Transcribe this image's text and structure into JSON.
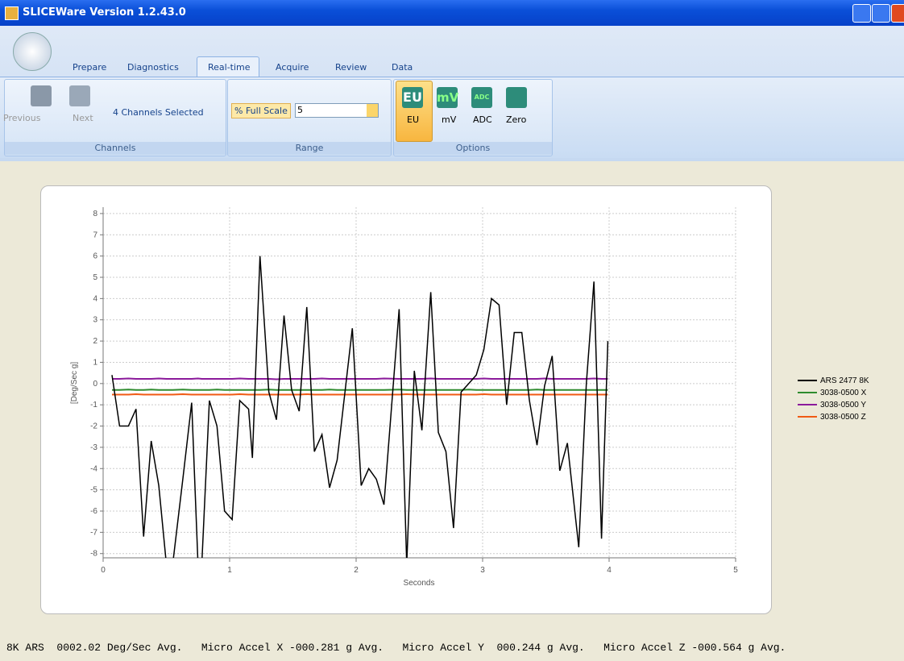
{
  "window": {
    "title": "SLICEWare Version 1.2.43.0"
  },
  "tabs": [
    "Prepare",
    "Diagnostics",
    "Real-time",
    "Acquire",
    "Review",
    "Data"
  ],
  "ribbon": {
    "channels": {
      "label": "Channels",
      "previous": "Previous",
      "next": "Next",
      "selector": "4 Channels Selected"
    },
    "range": {
      "label": "Range",
      "field": "% Full Scale",
      "value": "5"
    },
    "options": {
      "label": "Options",
      "buttons": [
        "EU",
        "mV",
        "ADC",
        "Zero"
      ]
    }
  },
  "chart_data": {
    "type": "line",
    "xlabel": "Seconds",
    "ylabel": "[Deg/Sec g]",
    "xlim": [
      0,
      5
    ],
    "xticks": [
      0,
      1,
      2,
      3,
      4,
      5
    ],
    "ylim": [
      -8.2,
      8.3
    ],
    "yticks": [
      -8,
      -7,
      -6,
      -5,
      -4,
      -3,
      -2,
      -1,
      0,
      1,
      2,
      3,
      4,
      5,
      6,
      7,
      8
    ],
    "grid": true,
    "legend": "right",
    "x": [
      0.07,
      0.13,
      0.2,
      0.26,
      0.32,
      0.38,
      0.44,
      0.5,
      0.55,
      0.63,
      0.7,
      0.75,
      0.78,
      0.84,
      0.9,
      0.96,
      1.02,
      1.08,
      1.15,
      1.18,
      1.24,
      1.31,
      1.37,
      1.43,
      1.49,
      1.55,
      1.61,
      1.67,
      1.73,
      1.79,
      1.85,
      1.97,
      2.04,
      2.1,
      2.16,
      2.22,
      2.34,
      2.4,
      2.46,
      2.52,
      2.59,
      2.65,
      2.71,
      2.77,
      2.83,
      2.89,
      2.95,
      3.01,
      3.07,
      3.13,
      3.19,
      3.25,
      3.31,
      3.37,
      3.43,
      3.49,
      3.55,
      3.61,
      3.67,
      3.76,
      3.82,
      3.88,
      3.94,
      3.99
    ],
    "series": [
      {
        "name": "ARS 2477 8K",
        "color": "#000000",
        "values": [
          0.4,
          -2.0,
          -2.0,
          -1.2,
          -7.2,
          -2.7,
          -4.8,
          -8.5,
          -8.5,
          -4.5,
          -0.9,
          -8.5,
          -8.5,
          -0.8,
          -2.0,
          -6.0,
          -6.4,
          -0.8,
          -1.2,
          -3.5,
          6.0,
          -0.4,
          -1.7,
          3.2,
          -0.3,
          -1.3,
          3.6,
          -3.2,
          -2.4,
          -4.9,
          -3.6,
          2.6,
          -4.8,
          -4.0,
          -4.5,
          -5.7,
          3.5,
          -8.5,
          0.6,
          -2.2,
          4.3,
          -2.3,
          -3.2,
          -6.8,
          -0.4,
          0.0,
          0.4,
          1.6,
          4.0,
          3.7,
          -1.0,
          2.4,
          2.4,
          -0.8,
          -2.9,
          -0.1,
          1.3,
          -4.1,
          -2.8,
          -7.7,
          0.0,
          4.8,
          -7.3,
          2.0
        ]
      },
      {
        "name": "3038-0500 X",
        "color": "#2e8b2e",
        "values": [
          -0.3,
          -0.3,
          -0.28,
          -0.3,
          -0.3,
          -0.28,
          -0.3,
          -0.3,
          -0.3,
          -0.28,
          -0.3,
          -0.3,
          -0.3,
          -0.3,
          -0.28,
          -0.3,
          -0.3,
          -0.3,
          -0.3,
          -0.3,
          -0.3,
          -0.28,
          -0.3,
          -0.3,
          -0.3,
          -0.3,
          -0.3,
          -0.3,
          -0.3,
          -0.28,
          -0.3,
          -0.3,
          -0.3,
          -0.3,
          -0.3,
          -0.3,
          -0.28,
          -0.3,
          -0.3,
          -0.3,
          -0.3,
          -0.3,
          -0.3,
          -0.3,
          -0.3,
          -0.28,
          -0.3,
          -0.3,
          -0.3,
          -0.3,
          -0.3,
          -0.3,
          -0.3,
          -0.3,
          -0.28,
          -0.3,
          -0.3,
          -0.3,
          -0.3,
          -0.3,
          -0.3,
          -0.3,
          -0.3,
          -0.3
        ]
      },
      {
        "name": "3038-0500 Y",
        "color": "#8b1a9b",
        "values": [
          0.22,
          0.22,
          0.24,
          0.22,
          0.22,
          0.22,
          0.24,
          0.22,
          0.22,
          0.22,
          0.22,
          0.24,
          0.22,
          0.22,
          0.22,
          0.22,
          0.22,
          0.24,
          0.22,
          0.22,
          0.22,
          0.22,
          0.2,
          0.22,
          0.22,
          0.22,
          0.22,
          0.22,
          0.24,
          0.22,
          0.22,
          0.22,
          0.22,
          0.22,
          0.22,
          0.24,
          0.22,
          0.22,
          0.22,
          0.22,
          0.24,
          0.22,
          0.22,
          0.22,
          0.22,
          0.22,
          0.22,
          0.24,
          0.22,
          0.22,
          0.22,
          0.22,
          0.22,
          0.22,
          0.22,
          0.24,
          0.22,
          0.22,
          0.22,
          0.22,
          0.22,
          0.24,
          0.22,
          0.22
        ]
      },
      {
        "name": "3038-0500 Z",
        "color": "#f05a14",
        "values": [
          -0.52,
          -0.52,
          -0.52,
          -0.5,
          -0.52,
          -0.52,
          -0.52,
          -0.52,
          -0.52,
          -0.5,
          -0.52,
          -0.52,
          -0.52,
          -0.52,
          -0.52,
          -0.52,
          -0.52,
          -0.5,
          -0.52,
          -0.52,
          -0.52,
          -0.52,
          -0.52,
          -0.52,
          -0.52,
          -0.52,
          -0.5,
          -0.52,
          -0.52,
          -0.52,
          -0.52,
          -0.52,
          -0.52,
          -0.52,
          -0.52,
          -0.52,
          -0.52,
          -0.5,
          -0.52,
          -0.52,
          -0.52,
          -0.52,
          -0.52,
          -0.52,
          -0.52,
          -0.52,
          -0.52,
          -0.5,
          -0.52,
          -0.52,
          -0.52,
          -0.52,
          -0.52,
          -0.52,
          -0.52,
          -0.52,
          -0.52,
          -0.52,
          -0.52,
          -0.52,
          -0.52,
          -0.52,
          -0.52,
          -0.52
        ]
      }
    ]
  },
  "status": "8K ARS  0002.02 Deg/Sec Avg.   Micro Accel X -000.281 g Avg.   Micro Accel Y  000.244 g Avg.   Micro Accel Z -000.564 g Avg."
}
